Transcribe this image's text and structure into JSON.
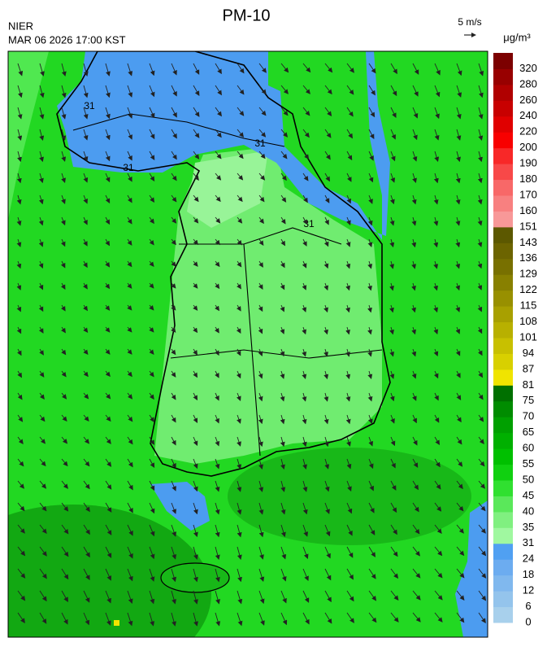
{
  "header": {
    "title": "PM-10",
    "agency": "NIER",
    "time": "MAR 06 2026 17:00 KST",
    "wind_scale": "5 m/s"
  },
  "map": {
    "contour_labels": [
      "31",
      "31",
      "31",
      "31"
    ]
  },
  "legend": {
    "unit": "μg/m³",
    "labels": [
      0,
      6,
      12,
      18,
      24,
      31,
      35,
      40,
      45,
      50,
      55,
      60,
      65,
      70,
      75,
      81,
      87,
      94,
      101,
      108,
      115,
      122,
      129,
      136,
      143,
      151,
      160,
      170,
      180,
      190,
      200,
      220,
      240,
      260,
      280,
      320
    ],
    "colors": [
      "#a8d0ec",
      "#94c4ec",
      "#80b8ee",
      "#6cacf0",
      "#50a0f2",
      "#a0f8a0",
      "#80f080",
      "#5ae85a",
      "#30e030",
      "#10d010",
      "#00c000",
      "#00b000",
      "#00a000",
      "#008c00",
      "#007000",
      "#f0e400",
      "#d8d000",
      "#c8c000",
      "#b8b000",
      "#a8a000",
      "#989000",
      "#888000",
      "#787000",
      "#6c6400",
      "#5c5800",
      "#f89898",
      "#f88080",
      "#f86868",
      "#f84848",
      "#f82828",
      "#f80000",
      "#e00000",
      "#c80000",
      "#b00000",
      "#980000",
      "#7c0000"
    ]
  }
}
